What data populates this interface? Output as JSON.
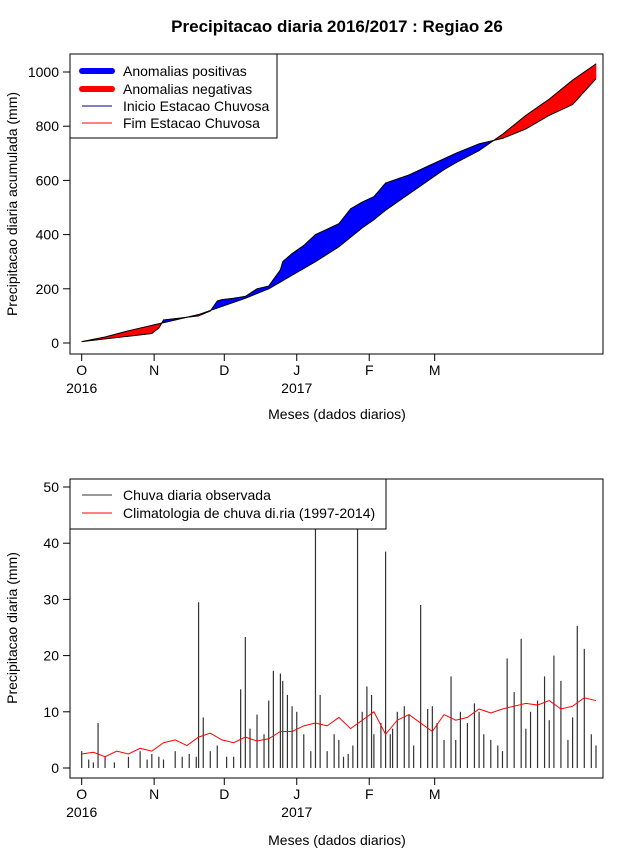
{
  "title": "Precipitacao diaria 2016/2017 : Regiao 26",
  "chart_data": [
    {
      "type": "area",
      "ylabel": "Precipitacao diaria acumulada (mm)",
      "xlabel": "Meses (dados diarios)",
      "x_ticks": [
        "O",
        "N",
        "D",
        "J",
        "F",
        "M"
      ],
      "x_years": [
        "2016",
        "2017"
      ],
      "y_ticks": [
        "0",
        "200",
        "400",
        "600",
        "800",
        "1000"
      ],
      "ylim": [
        0,
        1030
      ],
      "x_range_days": [
        -5,
        223
      ],
      "legend": [
        {
          "label": "Anomalias positivas",
          "color": "#0000ff",
          "style": "thick"
        },
        {
          "label": "Anomalias negativas",
          "color": "#ff0000",
          "style": "thick"
        },
        {
          "label": "Inicio Estacao Chuvosa",
          "color": "#00008b",
          "style": "thin"
        },
        {
          "label": "Fim Estacao Chuvosa",
          "color": "#ff0000",
          "style": "thin"
        }
      ],
      "climatology_cumulative": {
        "day": [
          0,
          10,
          20,
          30,
          40,
          50,
          60,
          70,
          80,
          85,
          90,
          100,
          110,
          115,
          120,
          125,
          130,
          140,
          150,
          155,
          160,
          170,
          180,
          190,
          200,
          210,
          220
        ],
        "mm": [
          5,
          22,
          45,
          65,
          85,
          105,
          135,
          165,
          200,
          225,
          250,
          300,
          355,
          390,
          425,
          455,
          490,
          550,
          610,
          640,
          665,
          710,
          770,
          840,
          900,
          970,
          1030
        ]
      },
      "observed_cumulative": {
        "day": [
          0,
          10,
          20,
          30,
          33,
          35,
          40,
          50,
          55,
          58,
          60,
          65,
          70,
          75,
          80,
          85,
          86,
          90,
          95,
          100,
          105,
          110,
          115,
          120,
          125,
          130,
          140,
          150,
          160,
          170,
          180,
          190,
          200,
          210,
          220
        ],
        "mm": [
          5,
          15,
          25,
          35,
          55,
          85,
          90,
          100,
          118,
          155,
          160,
          165,
          172,
          200,
          210,
          270,
          300,
          330,
          360,
          400,
          420,
          440,
          495,
          520,
          540,
          590,
          620,
          660,
          700,
          735,
          755,
          790,
          840,
          880,
          975
        ]
      }
    },
    {
      "type": "bar",
      "ylabel": "Precipitacao diaria (mm)",
      "xlabel": "Meses (dados diarios)",
      "x_ticks": [
        "O",
        "N",
        "D",
        "J",
        "F",
        "M"
      ],
      "x_years": [
        "2016",
        "2017"
      ],
      "y_ticks": [
        "0",
        "10",
        "20",
        "30",
        "40",
        "50"
      ],
      "ylim": [
        0,
        51
      ],
      "legend": [
        {
          "label": "Chuva diaria observada",
          "color": "#333333"
        },
        {
          "label": "Climatologia de chuva di.ria (1997-2014)",
          "color": "#ff0000"
        }
      ],
      "observed_daily": {
        "day": [
          0,
          3,
          5,
          7,
          10,
          14,
          20,
          25,
          28,
          30,
          33,
          35,
          40,
          43,
          46,
          49,
          50,
          52,
          55,
          58,
          62,
          65,
          68,
          70,
          72,
          75,
          78,
          80,
          82,
          85,
          86,
          88,
          90,
          92,
          95,
          98,
          100,
          102,
          105,
          108,
          110,
          112,
          114,
          116,
          118,
          120,
          122,
          124,
          125,
          128,
          130,
          132,
          133,
          135,
          138,
          140,
          142,
          145,
          148,
          150,
          152,
          155,
          158,
          160,
          162,
          165,
          168,
          170,
          172,
          175,
          178,
          180,
          182,
          185,
          188,
          190,
          192,
          195,
          198,
          200,
          202,
          205,
          208,
          210,
          212,
          215,
          218,
          220
        ],
        "mm": [
          3,
          1.5,
          1,
          8,
          2,
          1,
          2,
          3,
          1.5,
          2.5,
          2,
          1.5,
          3,
          2,
          2.5,
          2,
          29.5,
          9,
          3,
          4,
          2,
          2,
          14,
          23.3,
          7,
          9.5,
          6,
          12,
          17.3,
          16.8,
          15.5,
          13,
          11,
          10,
          6,
          3,
          44,
          13,
          3,
          6,
          5,
          2,
          2.5,
          4,
          45,
          10,
          14.5,
          13,
          6,
          8,
          38.5,
          6,
          7,
          10,
          11,
          9.5,
          4,
          29,
          10.5,
          11,
          8,
          5,
          16.3,
          5,
          10,
          8,
          11.5,
          10,
          6,
          5,
          4,
          3,
          19.5,
          13.5,
          23,
          7,
          10,
          12,
          16.3,
          8.5,
          20,
          15.5,
          5,
          9,
          25.3,
          21.2,
          6,
          4
        ]
      },
      "climatology_daily": {
        "day": [
          0,
          5,
          10,
          15,
          20,
          25,
          30,
          35,
          40,
          45,
          50,
          55,
          60,
          65,
          70,
          75,
          80,
          85,
          90,
          95,
          100,
          105,
          110,
          115,
          120,
          125,
          130,
          135,
          140,
          145,
          150,
          155,
          160,
          165,
          170,
          175,
          180,
          185,
          190,
          195,
          200,
          205,
          210,
          215,
          220
        ],
        "mm": [
          2.5,
          2.8,
          2,
          3,
          2.5,
          3.5,
          3,
          4.5,
          5,
          4,
          5.5,
          6.2,
          5,
          4.5,
          5.5,
          4.8,
          5.2,
          6.5,
          6.5,
          7.5,
          8,
          7.5,
          9,
          7,
          8.5,
          10,
          6,
          8.5,
          9.5,
          8,
          6.5,
          9.5,
          8.5,
          9,
          10.5,
          9.8,
          10.5,
          11,
          11.5,
          11.2,
          12,
          10.5,
          11,
          12.5,
          12
        ]
      }
    }
  ]
}
